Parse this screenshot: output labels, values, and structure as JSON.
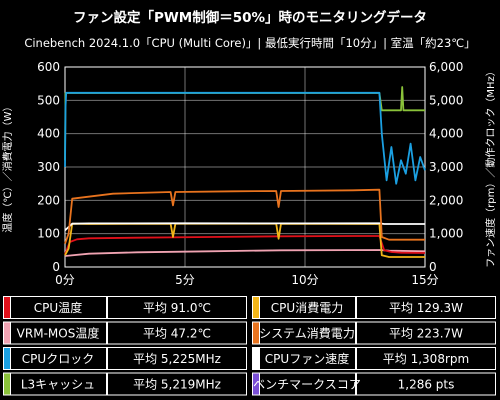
{
  "chart_data": {
    "type": "line",
    "title": "ファン設定「PWM制御＝50%」時のモニタリングデータ",
    "subtitle": "Cinebench 2024.1.0「CPU (Multi Core)」| 最低実行時間「10分」| 室温「約23℃」",
    "ylabel_left": "温度（℃）／消費電力（W）",
    "ylabel_right": "ファン速度（rpm）／動作クロック（MHz）",
    "x_ticks": [
      "0分",
      "5分",
      "10分",
      "15分"
    ],
    "xlim": [
      0,
      15
    ],
    "ylim_left": [
      0,
      600
    ],
    "ylim_right": [
      0,
      6000
    ],
    "y_ticks_left": [
      "0",
      "100",
      "200",
      "300",
      "400",
      "500",
      "600"
    ],
    "y_ticks_right": [
      "0",
      "1,000",
      "2,000",
      "3,000",
      "4,000",
      "5,000",
      "6,000"
    ],
    "grid": true,
    "series": [
      {
        "name": "CPU温度",
        "color": "#e0101a",
        "axis": "left",
        "x": [
          0,
          0.2,
          0.5,
          1,
          3,
          6,
          9,
          12,
          13.1,
          13.3,
          13.6,
          14,
          15
        ],
        "y": [
          38,
          75,
          83,
          86,
          88,
          90,
          92,
          93,
          93,
          50,
          45,
          43,
          42
        ]
      },
      {
        "name": "CPU消費電力",
        "color": "#f2b518",
        "axis": "left",
        "x": [
          0,
          0.15,
          0.3,
          1,
          4.4,
          4.5,
          4.6,
          8.8,
          8.9,
          9.0,
          13.1,
          13.2,
          13.5,
          15
        ],
        "y": [
          35,
          55,
          130,
          129,
          130,
          90,
          130,
          130,
          85,
          130,
          129,
          35,
          30,
          30
        ]
      },
      {
        "name": "VRM-MOS温度",
        "color": "#f0a3b2",
        "axis": "left",
        "x": [
          0,
          1,
          3,
          6,
          9,
          13.1,
          13.5,
          15
        ],
        "y": [
          33,
          40,
          44,
          47,
          50,
          51,
          49,
          47
        ]
      },
      {
        "name": "システム消費電力",
        "color": "#e8731e",
        "axis": "left",
        "x": [
          0,
          0.15,
          0.3,
          2,
          4.4,
          4.5,
          4.6,
          7,
          8.8,
          8.9,
          9.0,
          12,
          13.1,
          13.2,
          13.5,
          15
        ],
        "y": [
          70,
          100,
          205,
          220,
          225,
          185,
          225,
          227,
          228,
          180,
          228,
          230,
          232,
          90,
          82,
          82
        ]
      },
      {
        "name": "CPUクロック",
        "color": "#1ba0e2",
        "axis": "right",
        "x": [
          0,
          0.02,
          0.05,
          1,
          5,
          10,
          13.1,
          13.2,
          13.4,
          13.6,
          13.8,
          14,
          14.2,
          14.4,
          14.6,
          14.8,
          15
        ],
        "y": [
          3000,
          4800,
          5225,
          5225,
          5225,
          5225,
          5225,
          4000,
          2600,
          3600,
          2500,
          3200,
          2800,
          3700,
          2600,
          3300,
          2900
        ]
      },
      {
        "name": "CPUファン速度",
        "color": "#ffffff",
        "axis": "right",
        "x": [
          0,
          0.3,
          1,
          5,
          10,
          13.1,
          13.3,
          15
        ],
        "y": [
          1100,
          1300,
          1308,
          1310,
          1308,
          1310,
          1290,
          1290
        ]
      },
      {
        "name": "L3キャッシュ",
        "color": "#8ac23a",
        "axis": "right",
        "x": [
          0,
          0.02,
          1,
          5,
          10,
          13.1,
          13.2,
          14.0,
          14.05,
          14.1,
          15
        ],
        "y": [
          3200,
          5219,
          5219,
          5219,
          5219,
          5219,
          4700,
          4700,
          5400,
          4700,
          4700
        ]
      }
    ],
    "legend": [
      {
        "name": "CPU温度",
        "color": "#e0101a",
        "value": "平均 91.0℃"
      },
      {
        "name": "CPU消費電力",
        "color": "#f2b518",
        "value": "平均 129.3W"
      },
      {
        "name": "VRM-MOS温度",
        "color": "#f0a3b2",
        "value": "平均 47.2℃"
      },
      {
        "name": "システム消費電力",
        "color": "#e8731e",
        "value": "平均 223.7W"
      },
      {
        "name": "CPUクロック",
        "color": "#1ba0e2",
        "value": "平均 5,225MHz"
      },
      {
        "name": "CPUファン速度",
        "color": "#ffffff",
        "value": "平均 1,308rpm"
      },
      {
        "name": "L3キャッシュ",
        "color": "#8ac23a",
        "value": "平均 5,219MHz"
      },
      {
        "name": "ベンチマークスコア",
        "color": "#7a4fd6",
        "value": "1,286 pts"
      }
    ]
  }
}
